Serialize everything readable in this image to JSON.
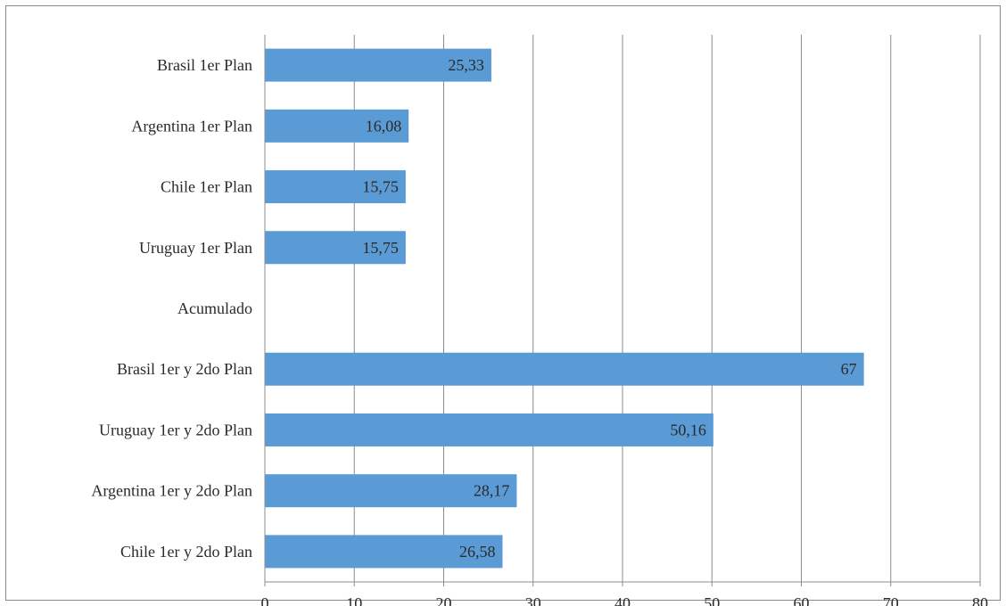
{
  "chart_data": {
    "type": "bar",
    "orientation": "horizontal",
    "categories": [
      "Brasil 1er Plan",
      "Argentina 1er Plan",
      "Chile 1er Plan",
      "Uruguay 1er Plan",
      "Acumulado",
      "Brasil 1er y 2do Plan",
      "Uruguay 1er y 2do Plan",
      "Argentina 1er y 2do Plan",
      "Chile 1er y 2do Plan"
    ],
    "values": [
      25.33,
      16.08,
      15.75,
      15.75,
      null,
      67,
      50.16,
      28.17,
      26.58
    ],
    "data_labels": [
      "25,33",
      "16,08",
      "15,75",
      "15,75",
      "",
      "67",
      "50,16",
      "28,17",
      "26,58"
    ],
    "xlim": [
      0,
      80
    ],
    "x_ticks": [
      0,
      10,
      20,
      30,
      40,
      50,
      60,
      70,
      80
    ],
    "x_tick_labels": [
      "0",
      "10",
      "20",
      "30",
      "40",
      "50",
      "60",
      "70",
      "80"
    ],
    "grid": "vertical",
    "legend": "none",
    "title": "",
    "xlabel": "",
    "ylabel": "",
    "bar_color": "#5b9bd5",
    "grid_color": "#8c8c8c"
  }
}
